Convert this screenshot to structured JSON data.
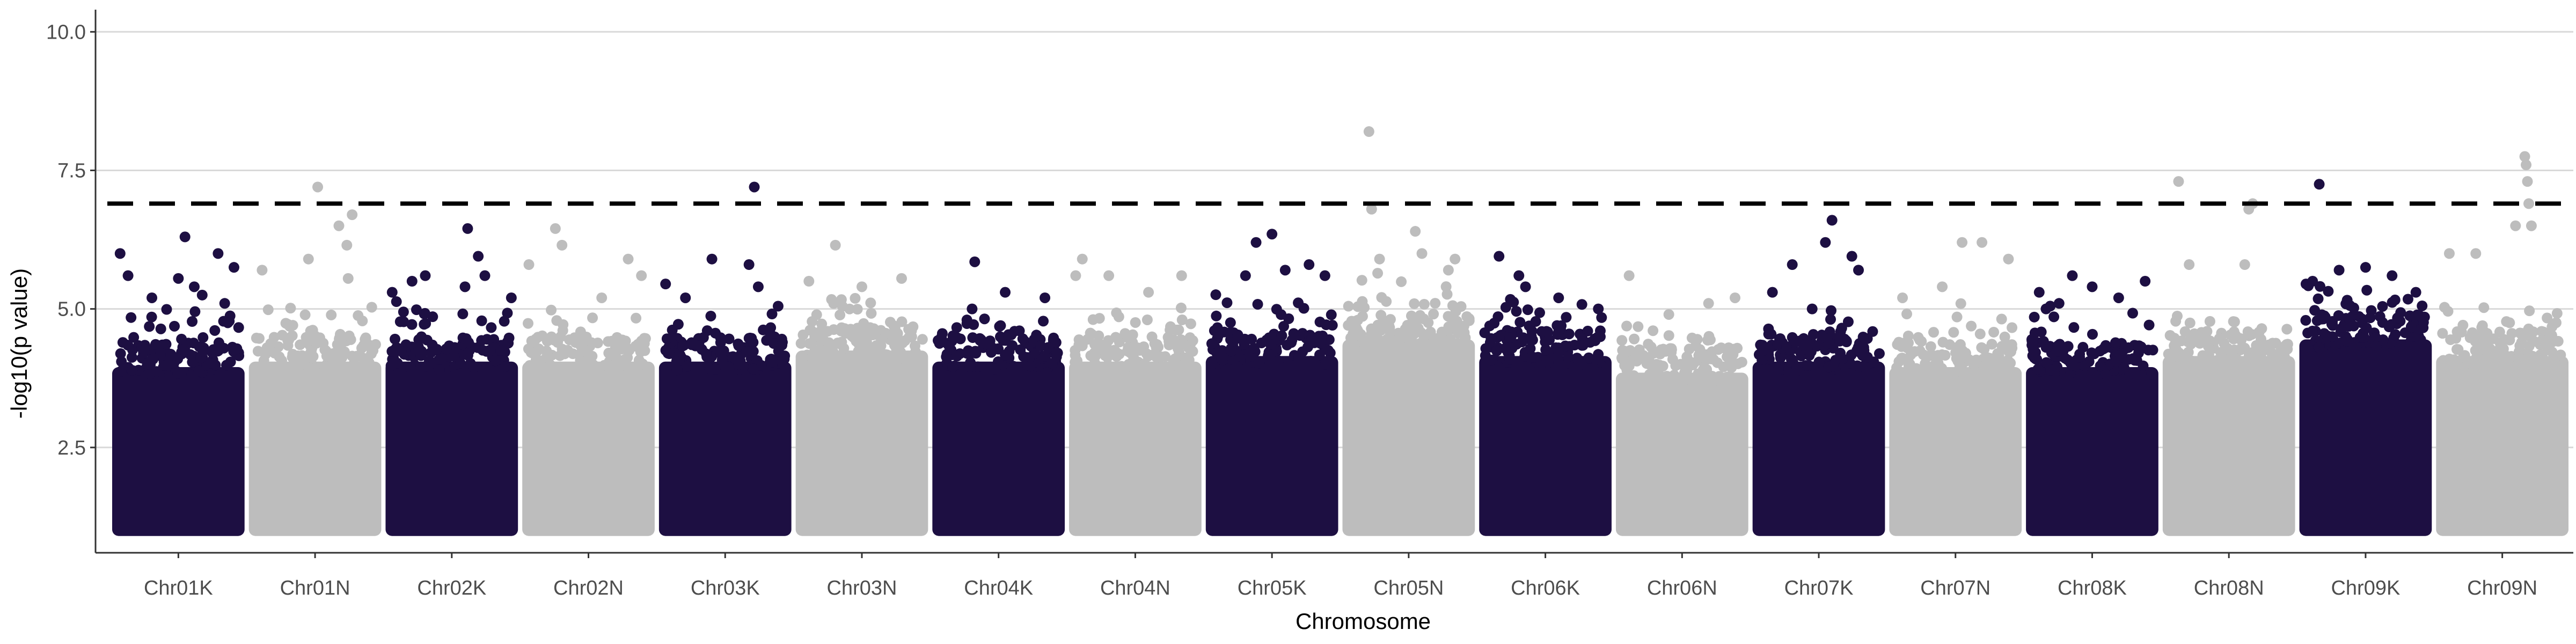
{
  "chart_data": {
    "type": "scatter",
    "subtype": "manhattan",
    "title": "",
    "xlabel": "Chromosome",
    "ylabel": "-log10(p value)",
    "ylim": [
      0.6,
      10.4
    ],
    "yticks": [
      2.5,
      5.0,
      7.5,
      10.0
    ],
    "ytick_labels": [
      "2.5",
      "5.0",
      "7.5",
      "10.0"
    ],
    "grid": "horizontal major",
    "legend": "none",
    "threshold": 6.9,
    "base_min": 1.0,
    "colors": {
      "K": "#1d0f42",
      "N": "#bdbdbd",
      "threshold": "#000000",
      "grid": "#d9d9d9",
      "axis": "#333333"
    },
    "chromosomes": [
      {
        "name": "Chr01K",
        "group": "K",
        "dense_top": 4.3,
        "spread_max": 5.3,
        "peaks": [
          [
            0.06,
            6.0
          ],
          [
            0.12,
            5.6
          ],
          [
            0.3,
            5.2
          ],
          [
            0.5,
            5.55
          ],
          [
            0.62,
            5.4
          ],
          [
            0.68,
            5.25
          ],
          [
            0.55,
            6.3
          ],
          [
            0.8,
            6.0
          ],
          [
            0.92,
            5.75
          ],
          [
            0.85,
            5.1
          ]
        ]
      },
      {
        "name": "Chr01N",
        "group": "N",
        "dense_top": 4.4,
        "spread_max": 5.0,
        "peaks": [
          [
            0.1,
            5.7
          ],
          [
            0.45,
            5.9
          ],
          [
            0.52,
            7.2
          ],
          [
            0.68,
            6.5
          ],
          [
            0.74,
            6.15
          ],
          [
            0.78,
            6.7
          ],
          [
            0.75,
            5.55
          ]
        ]
      },
      {
        "name": "Chr02K",
        "group": "K",
        "dense_top": 4.4,
        "spread_max": 5.2,
        "peaks": [
          [
            0.05,
            5.3
          ],
          [
            0.2,
            5.5
          ],
          [
            0.3,
            5.6
          ],
          [
            0.6,
            5.4
          ],
          [
            0.62,
            6.45
          ],
          [
            0.7,
            5.95
          ],
          [
            0.75,
            5.6
          ],
          [
            0.95,
            5.2
          ]
        ]
      },
      {
        "name": "Chr02N",
        "group": "N",
        "dense_top": 4.4,
        "spread_max": 5.0,
        "peaks": [
          [
            0.05,
            5.8
          ],
          [
            0.25,
            6.45
          ],
          [
            0.3,
            6.15
          ],
          [
            0.6,
            5.2
          ],
          [
            0.8,
            5.9
          ],
          [
            0.9,
            5.6
          ]
        ]
      },
      {
        "name": "Chr03K",
        "group": "K",
        "dense_top": 4.4,
        "spread_max": 4.9,
        "peaks": [
          [
            0.05,
            5.45
          ],
          [
            0.2,
            5.2
          ],
          [
            0.4,
            5.9
          ],
          [
            0.68,
            5.8
          ],
          [
            0.72,
            7.2
          ],
          [
            0.75,
            5.4
          ],
          [
            0.9,
            5.05
          ]
        ]
      },
      {
        "name": "Chr03N",
        "group": "N",
        "dense_top": 4.6,
        "spread_max": 5.3,
        "peaks": [
          [
            0.1,
            5.5
          ],
          [
            0.3,
            6.15
          ],
          [
            0.5,
            5.4
          ],
          [
            0.8,
            5.55
          ]
        ]
      },
      {
        "name": "Chr04K",
        "group": "K",
        "dense_top": 4.4,
        "spread_max": 4.8,
        "peaks": [
          [
            0.3,
            5.0
          ],
          [
            0.32,
            5.85
          ],
          [
            0.55,
            5.3
          ],
          [
            0.85,
            5.2
          ]
        ]
      },
      {
        "name": "Chr04N",
        "group": "N",
        "dense_top": 4.4,
        "spread_max": 5.0,
        "peaks": [
          [
            0.05,
            5.6
          ],
          [
            0.1,
            5.9
          ],
          [
            0.3,
            5.6
          ],
          [
            0.6,
            5.3
          ],
          [
            0.85,
            5.6
          ]
        ]
      },
      {
        "name": "Chr05K",
        "group": "K",
        "dense_top": 4.5,
        "spread_max": 5.3,
        "peaks": [
          [
            0.3,
            5.6
          ],
          [
            0.38,
            6.2
          ],
          [
            0.5,
            6.35
          ],
          [
            0.6,
            5.7
          ],
          [
            0.78,
            5.8
          ],
          [
            0.9,
            5.6
          ]
        ]
      },
      {
        "name": "Chr05N",
        "group": "N",
        "dense_top": 4.8,
        "spread_max": 5.6,
        "peaks": [
          [
            0.2,
            8.2
          ],
          [
            0.22,
            6.8
          ],
          [
            0.28,
            5.9
          ],
          [
            0.55,
            6.4
          ],
          [
            0.6,
            6.0
          ],
          [
            0.8,
            5.7
          ],
          [
            0.85,
            5.9
          ]
        ]
      },
      {
        "name": "Chr06K",
        "group": "K",
        "dense_top": 4.5,
        "spread_max": 5.2,
        "peaks": [
          [
            0.15,
            5.95
          ],
          [
            0.3,
            5.6
          ],
          [
            0.35,
            5.4
          ],
          [
            0.6,
            5.2
          ],
          [
            0.9,
            5.0
          ]
        ]
      },
      {
        "name": "Chr06N",
        "group": "N",
        "dense_top": 4.2,
        "spread_max": 4.8,
        "peaks": [
          [
            0.1,
            5.6
          ],
          [
            0.4,
            4.9
          ],
          [
            0.7,
            5.1
          ],
          [
            0.9,
            5.2
          ]
        ]
      },
      {
        "name": "Chr07K",
        "group": "K",
        "dense_top": 4.4,
        "spread_max": 5.0,
        "peaks": [
          [
            0.15,
            5.3
          ],
          [
            0.3,
            5.8
          ],
          [
            0.45,
            5.0
          ],
          [
            0.55,
            6.2
          ],
          [
            0.6,
            6.6
          ],
          [
            0.75,
            5.95
          ],
          [
            0.8,
            5.7
          ]
        ]
      },
      {
        "name": "Chr07N",
        "group": "N",
        "dense_top": 4.3,
        "spread_max": 5.0,
        "peaks": [
          [
            0.1,
            5.2
          ],
          [
            0.4,
            5.4
          ],
          [
            0.55,
            6.2
          ],
          [
            0.7,
            6.2
          ],
          [
            0.9,
            5.9
          ]
        ]
      },
      {
        "name": "Chr08K",
        "group": "K",
        "dense_top": 4.3,
        "spread_max": 5.0,
        "peaks": [
          [
            0.1,
            5.3
          ],
          [
            0.25,
            5.1
          ],
          [
            0.35,
            5.6
          ],
          [
            0.5,
            5.4
          ],
          [
            0.7,
            5.2
          ],
          [
            0.9,
            5.5
          ]
        ]
      },
      {
        "name": "Chr08N",
        "group": "N",
        "dense_top": 4.5,
        "spread_max": 5.0,
        "peaks": [
          [
            0.12,
            7.3
          ],
          [
            0.2,
            5.8
          ],
          [
            0.62,
            5.8
          ],
          [
            0.65,
            6.8
          ],
          [
            0.68,
            6.9
          ]
        ]
      },
      {
        "name": "Chr09K",
        "group": "K",
        "dense_top": 4.8,
        "spread_max": 5.4,
        "peaks": [
          [
            0.05,
            5.45
          ],
          [
            0.1,
            5.5
          ],
          [
            0.15,
            7.25
          ],
          [
            0.3,
            5.7
          ],
          [
            0.5,
            5.75
          ],
          [
            0.7,
            5.6
          ],
          [
            0.88,
            5.3
          ]
        ]
      },
      {
        "name": "Chr09N",
        "group": "N",
        "dense_top": 4.5,
        "spread_max": 5.1,
        "peaks": [
          [
            0.1,
            6.0
          ],
          [
            0.3,
            6.0
          ],
          [
            0.6,
            6.5
          ],
          [
            0.67,
            7.75
          ],
          [
            0.68,
            7.6
          ],
          [
            0.69,
            7.3
          ],
          [
            0.7,
            6.9
          ],
          [
            0.72,
            6.5
          ]
        ]
      }
    ]
  }
}
